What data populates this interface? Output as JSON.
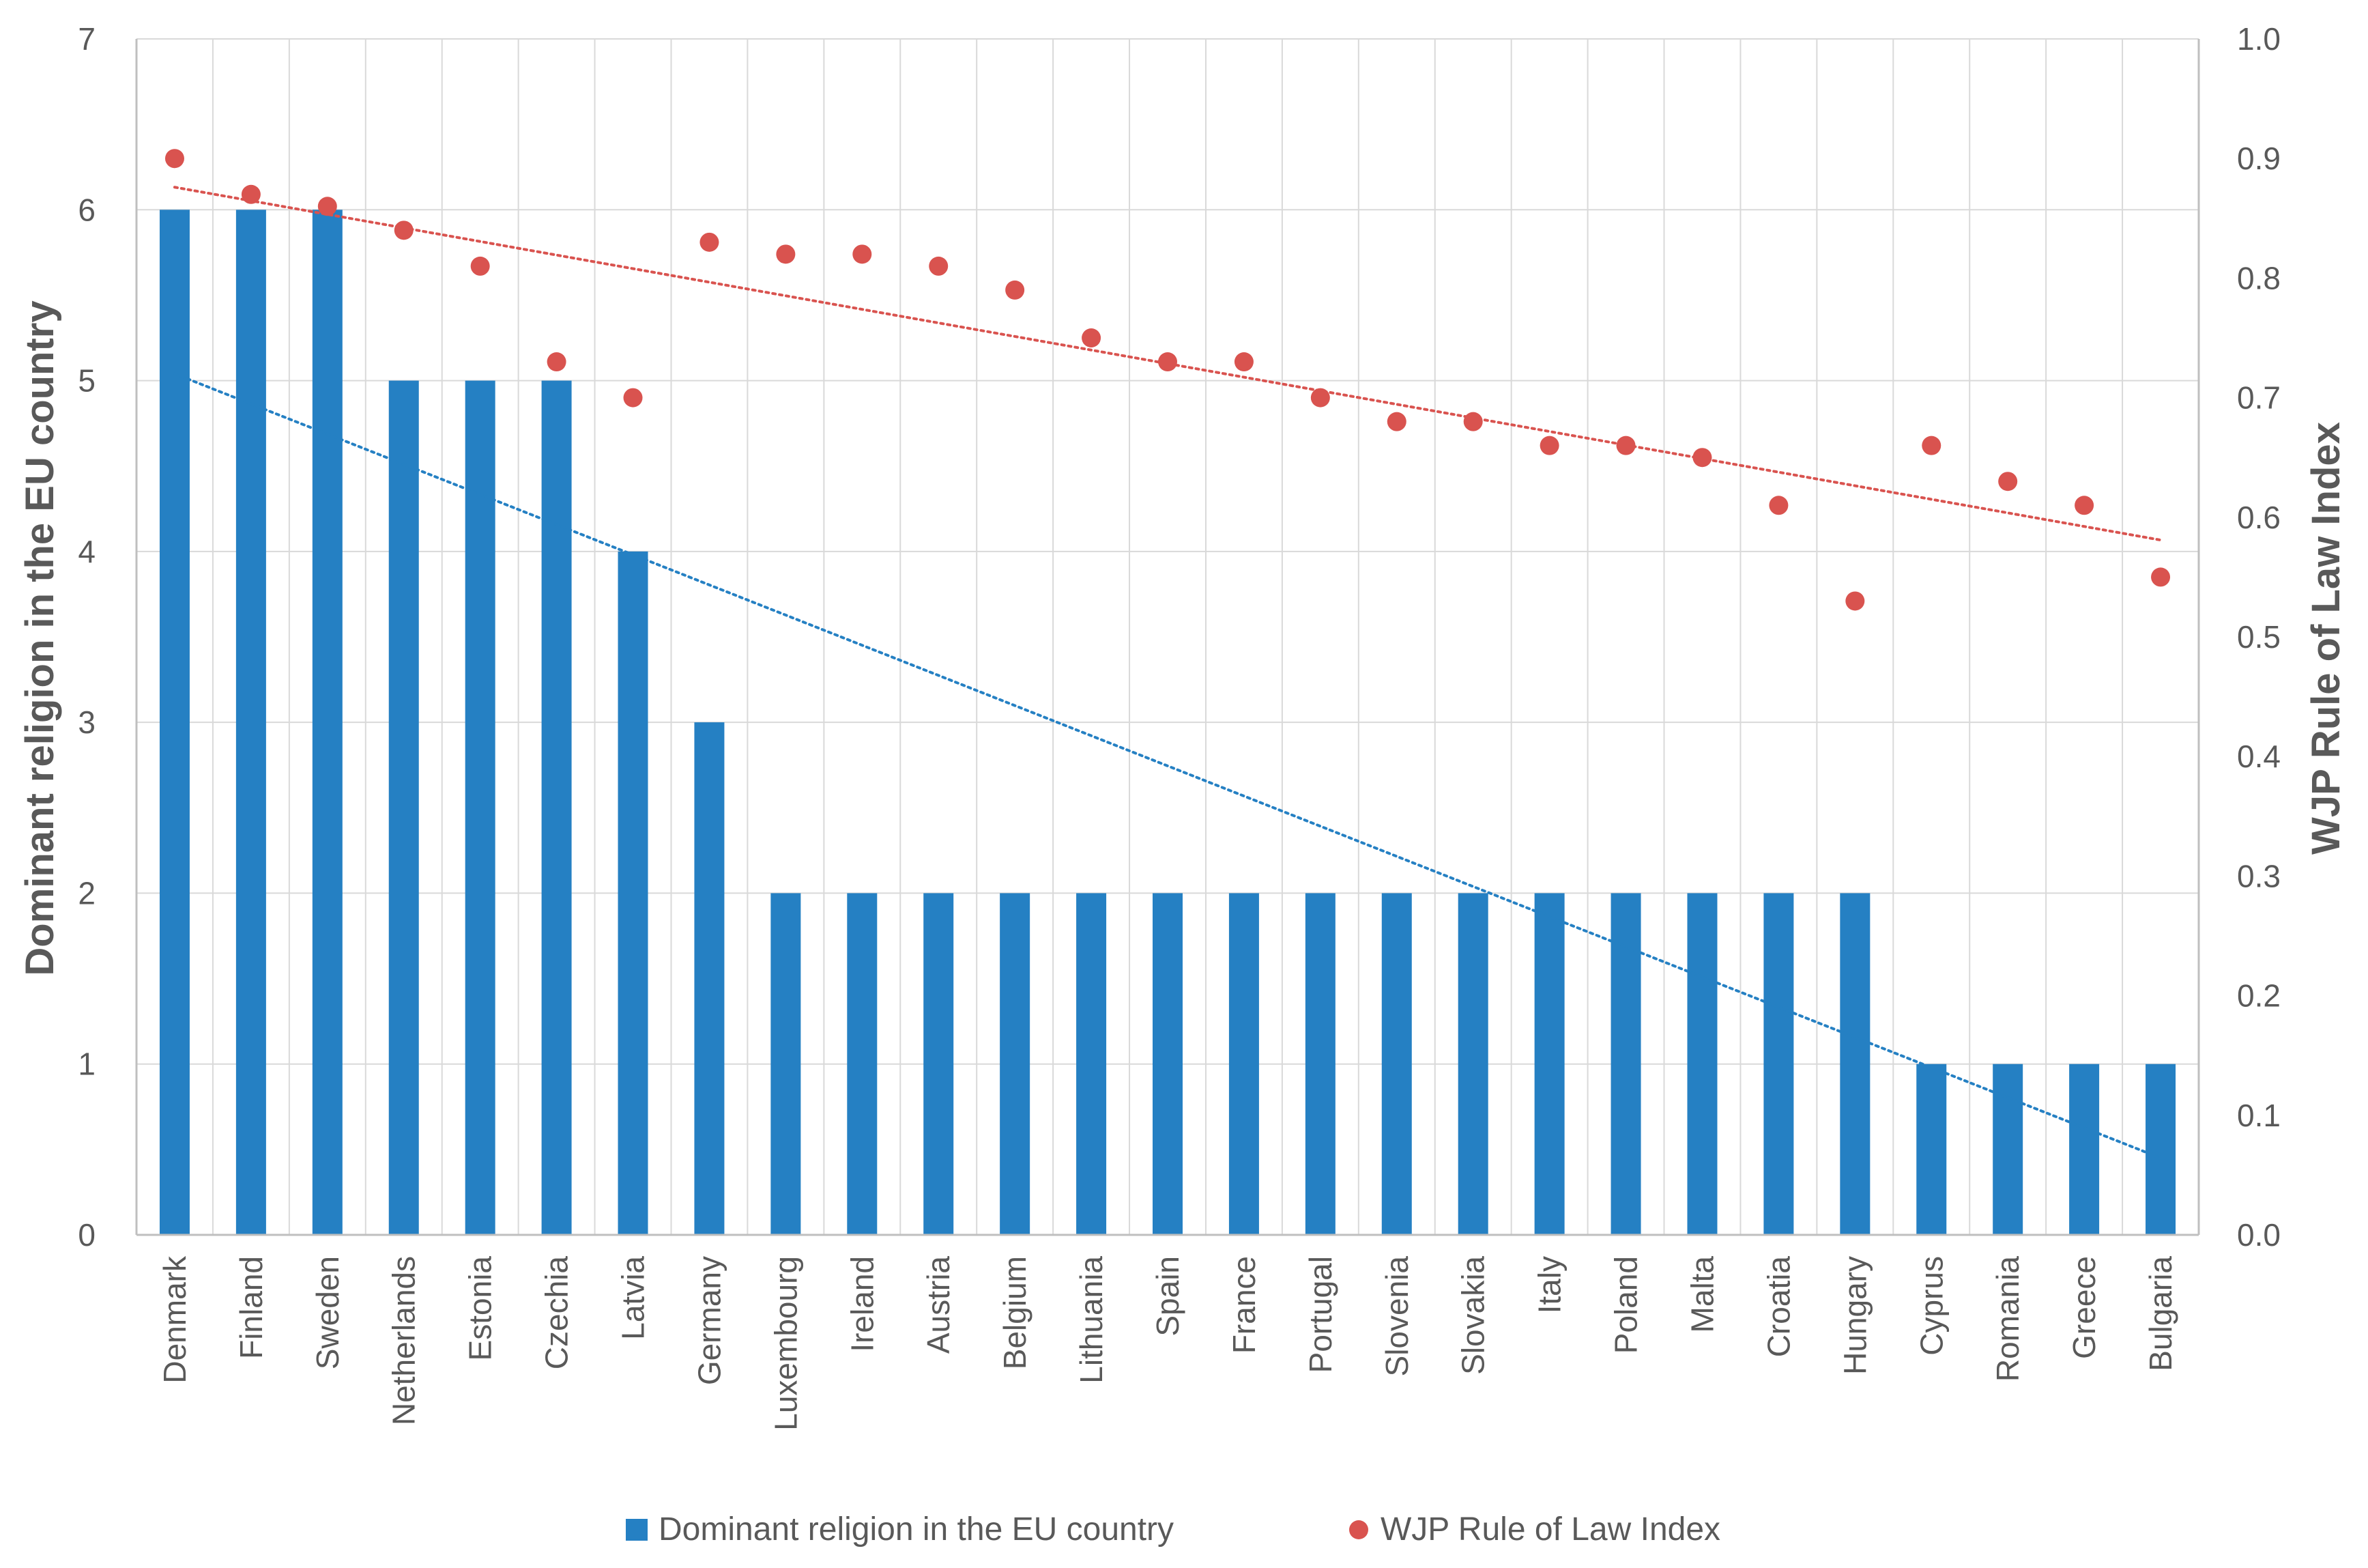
{
  "chart_data": {
    "type": "bar",
    "title": "",
    "xlabel": "",
    "ylabel": "Dominant religion in the EU country",
    "y2label": "WJP Rule of Law Index",
    "ylim": [
      0,
      7
    ],
    "y2lim": [
      0.0,
      1.0
    ],
    "yticks": [
      "0",
      "1",
      "2",
      "3",
      "4",
      "5",
      "6",
      "7"
    ],
    "y2ticks": [
      "0.0",
      "0.1",
      "0.2",
      "0.3",
      "0.4",
      "0.5",
      "0.6",
      "0.7",
      "0.8",
      "0.9",
      "1.0"
    ],
    "grid": true,
    "legend_position": "bottom",
    "categories": [
      "Denmark",
      "Finland",
      "Sweden",
      "Netherlands",
      "Estonia",
      "Czechia",
      "Latvia",
      "Germany",
      "Luxembourg",
      "Ireland",
      "Austria",
      "Belgium",
      "Lithuania",
      "Spain",
      "France",
      "Portugal",
      "Slovenia",
      "Slovakia",
      "Italy",
      "Poland",
      "Malta",
      "Croatia",
      "Hungary",
      "Cyprus",
      "Romania",
      "Greece",
      "Bulgaria"
    ],
    "series": [
      {
        "name": "Dominant religion in the EU country",
        "type": "bar",
        "axis": "left",
        "color": "#2580c3",
        "values": [
          6,
          6,
          6,
          5,
          5,
          5,
          4,
          3,
          2,
          2,
          2,
          2,
          2,
          2,
          2,
          2,
          2,
          2,
          2,
          2,
          2,
          2,
          2,
          1,
          1,
          1,
          1
        ]
      },
      {
        "name": "WJP Rule of Law Index",
        "type": "scatter",
        "axis": "right",
        "color": "#d9534f",
        "values": [
          0.9,
          0.87,
          0.86,
          0.84,
          0.81,
          0.73,
          0.7,
          0.83,
          0.82,
          0.82,
          0.81,
          0.79,
          0.75,
          0.73,
          0.73,
          0.7,
          0.68,
          0.68,
          0.66,
          0.66,
          0.65,
          0.61,
          0.53,
          0.66,
          0.63,
          0.61,
          0.55
        ]
      }
    ],
    "trendlines": [
      {
        "series": "Dominant religion in the EU country",
        "axis": "left",
        "style": "dotted",
        "color": "#2580c3",
        "start": 5.04,
        "end": 0.45
      },
      {
        "series": "WJP Rule of Law Index",
        "axis": "right",
        "style": "dotted",
        "color": "#d9534f",
        "start": 0.876,
        "end": 0.581
      }
    ]
  }
}
